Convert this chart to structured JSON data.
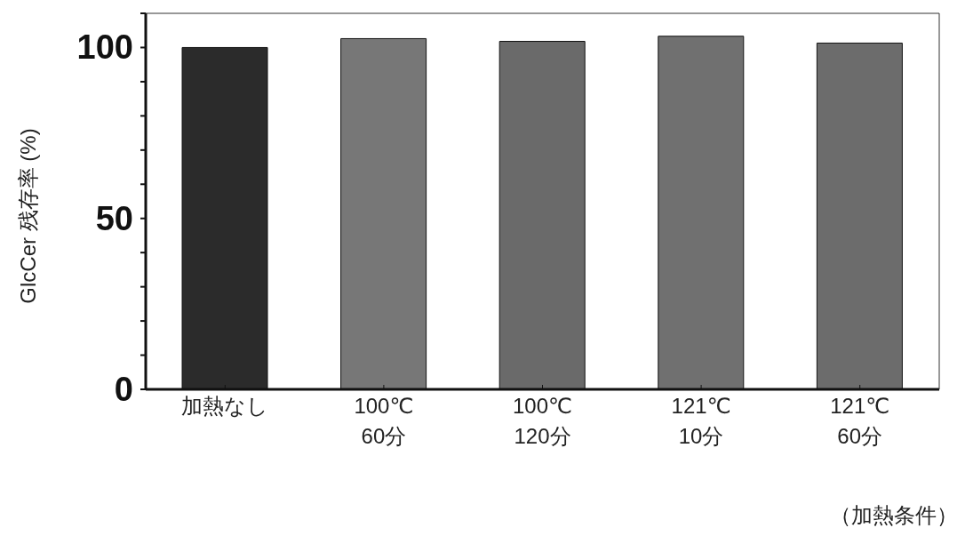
{
  "chart_data": {
    "type": "bar",
    "categories": [
      "加熱なし",
      "100℃\n60分",
      "100℃\n120分",
      "121℃\n10分",
      "121℃\n60分"
    ],
    "values": [
      100,
      102.6,
      101.8,
      103.3,
      101.3
    ],
    "colors": [
      "#2b2b2b",
      "#777777",
      "#6a6a6a",
      "#707070",
      "#6c6c6c"
    ],
    "ylabel": "GlcCer 残存率 (%)",
    "xlabel": "（加熱条件）",
    "ylim": [
      0,
      110
    ],
    "yticks": [
      0,
      {
        "value": 10,
        "label": null
      },
      {
        "value": 20,
        "label": null
      },
      {
        "value": 30,
        "label": null
      },
      {
        "value": 40,
        "label": null
      },
      50,
      {
        "value": 60,
        "label": null
      },
      {
        "value": 70,
        "label": null
      },
      {
        "value": 80,
        "label": null
      },
      {
        "value": 90,
        "label": null
      },
      100,
      {
        "value": 110,
        "label": null
      }
    ],
    "grid": false
  }
}
